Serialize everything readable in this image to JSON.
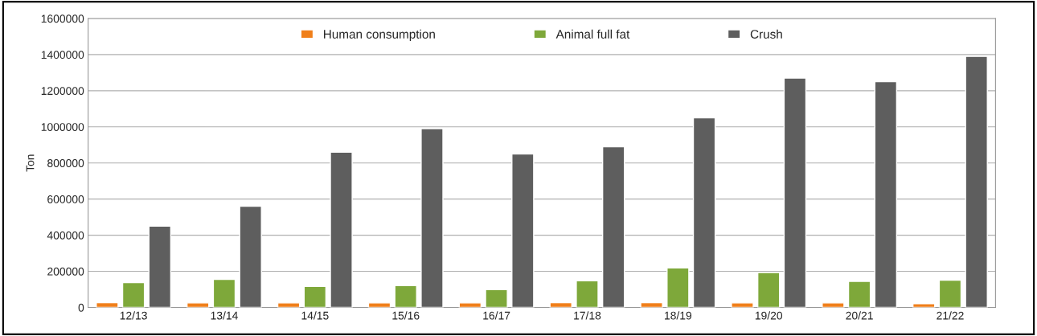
{
  "chart_data": {
    "type": "bar",
    "ylabel": "Ton",
    "categories": [
      "12/13",
      "13/14",
      "14/15",
      "15/16",
      "16/17",
      "17/18",
      "18/19",
      "19/20",
      "20/21",
      "21/22"
    ],
    "series": [
      {
        "name": "Human consumption",
        "color": "#f07f1a",
        "values": [
          26000,
          25000,
          25000,
          25000,
          25000,
          26000,
          26000,
          25000,
          25000,
          21000
        ]
      },
      {
        "name": "Animal full fat",
        "color": "#7ea83a",
        "values": [
          138000,
          155000,
          116000,
          121000,
          99000,
          148000,
          219000,
          193000,
          144000,
          151000
        ]
      },
      {
        "name": "Crush",
        "color": "#5e5e5e",
        "values": [
          450000,
          560000,
          860000,
          990000,
          850000,
          890000,
          1050000,
          1270000,
          1250000,
          1390000
        ]
      }
    ],
    "ylim": [
      0,
      1600000
    ],
    "yticks": [
      0,
      200000,
      400000,
      600000,
      800000,
      1000000,
      1200000,
      1400000,
      1600000
    ],
    "grid": "y",
    "legend": "top"
  }
}
